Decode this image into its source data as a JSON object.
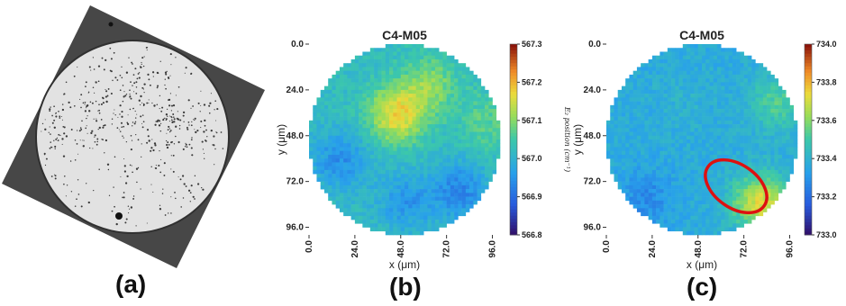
{
  "labels": {
    "a": "(a)",
    "b": "(b)",
    "c": "(c)"
  },
  "chart_data": [
    {
      "type": "heatmap",
      "panel": "(b)",
      "title": "C4-M05",
      "xlabel": "x (μm)",
      "ylabel": "y (μm)",
      "xticks": [
        "0.0",
        "24.0",
        "48.0",
        "72.0",
        "96.0"
      ],
      "yticks": [
        "0.0",
        "24.0",
        "48.0",
        "72.0",
        "96.0"
      ],
      "colorbar_label": "E₂ position (cm⁻¹)",
      "colorbar_ticks": [
        "567.3",
        "567.2",
        "567.1",
        "567.0",
        "566.9",
        "566.8"
      ],
      "clim": [
        566.8,
        567.3
      ],
      "base_value": 567.02,
      "features": [
        {
          "x": 45,
          "y": 36,
          "value": 567.17
        },
        {
          "x": 62,
          "y": 20,
          "value": 567.1
        },
        {
          "x": 15,
          "y": 60,
          "value": 566.94
        },
        {
          "x": 78,
          "y": 76,
          "value": 566.93
        },
        {
          "x": 50,
          "y": 82,
          "value": 566.95
        },
        {
          "x": 92,
          "y": 40,
          "value": 567.07
        }
      ]
    },
    {
      "type": "heatmap",
      "panel": "(c)",
      "title": "C4-M05",
      "xlabel": "x (μm)",
      "ylabel": "y (μm)",
      "xticks": [
        "0.0",
        "24.0",
        "48.0",
        "72.0",
        "96.0"
      ],
      "yticks": [
        "0.0",
        "24.0",
        "48.0",
        "72.0",
        "96.0"
      ],
      "colorbar_ticks": [
        "734.0",
        "733.8",
        "733.6",
        "733.4",
        "733.2",
        "733.0"
      ],
      "clim": [
        733.0,
        734.0
      ],
      "base_value": 733.37,
      "features": [
        {
          "x": 80,
          "y": 82,
          "value": 733.72
        },
        {
          "x": 88,
          "y": 30,
          "value": 733.52
        },
        {
          "x": 20,
          "y": 80,
          "value": 733.27
        },
        {
          "x": 40,
          "y": 30,
          "value": 733.4
        }
      ],
      "annotation": {
        "shape": "ellipse",
        "color": "#dd1111",
        "center": [
          77,
          81
        ],
        "note": "highlighted high-value region"
      }
    }
  ]
}
